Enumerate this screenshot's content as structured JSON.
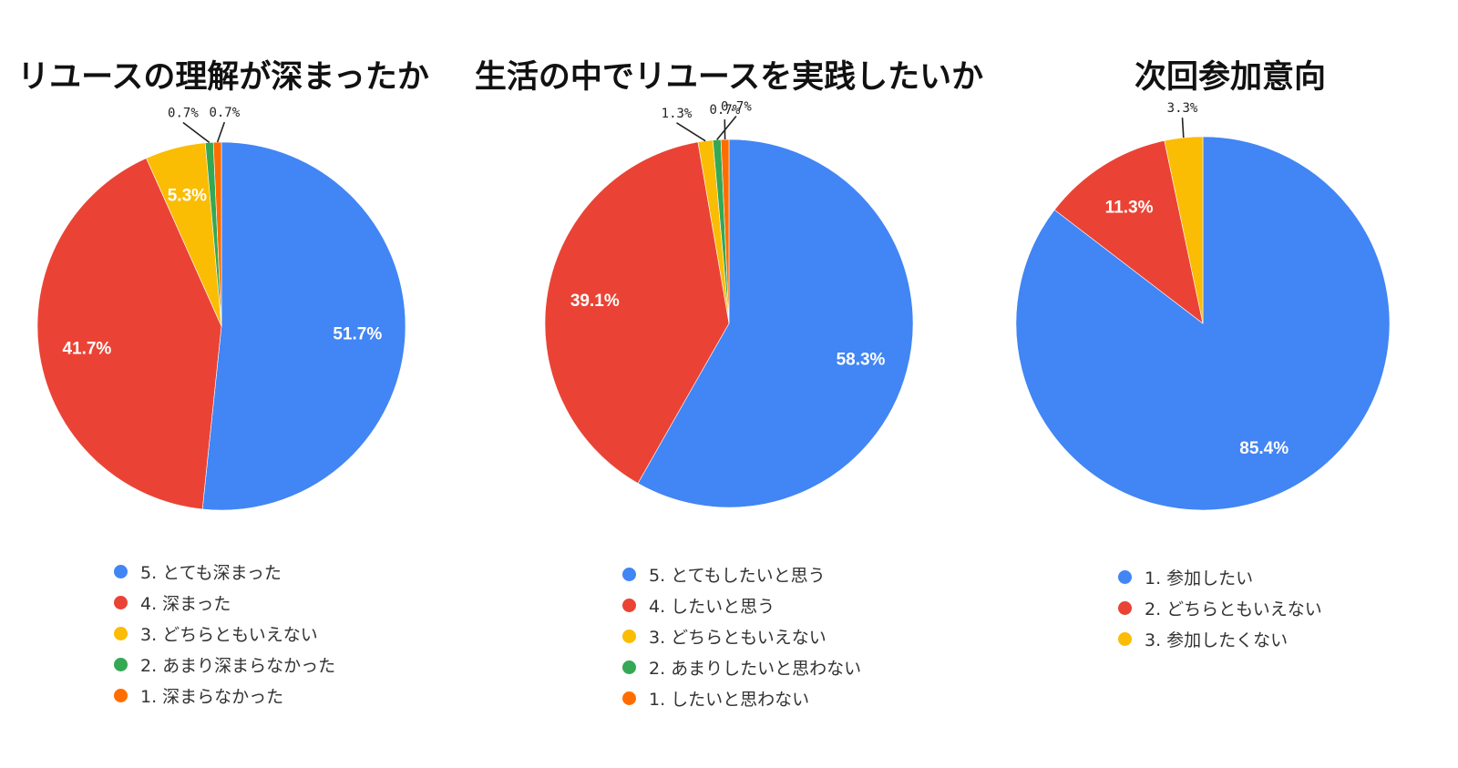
{
  "colors": {
    "blue": "#4285f4",
    "red": "#ea4335",
    "yellow": "#fbbc04",
    "green": "#34a853",
    "orange": "#ff6d01"
  },
  "chart_data": [
    {
      "type": "pie",
      "title": "リユースの理解が深まったか",
      "legend_position": "bottom",
      "slices": [
        {
          "label": "5. とても深まった",
          "value": 51.7,
          "value_label": "51.7%",
          "color": "#4285f4"
        },
        {
          "label": "4. 深まった",
          "value": 41.7,
          "value_label": "41.7%",
          "color": "#ea4335"
        },
        {
          "label": "3. どちらともいえない",
          "value": 5.3,
          "value_label": "5.3%",
          "color": "#fbbc04"
        },
        {
          "label": "2. あまり深まらなかった",
          "value": 0.7,
          "value_label": "0.7%",
          "color": "#34a853"
        },
        {
          "label": "1. 深まらなかった",
          "value": 0.7,
          "value_label": "0.7%",
          "color": "#ff6d01"
        }
      ]
    },
    {
      "type": "pie",
      "title": "生活の中でリユースを実践したいか",
      "legend_position": "bottom",
      "slices": [
        {
          "label": "5. とてもしたいと思う",
          "value": 58.3,
          "value_label": "58.3%",
          "color": "#4285f4"
        },
        {
          "label": "4. したいと思う",
          "value": 39.1,
          "value_label": "39.1%",
          "color": "#ea4335"
        },
        {
          "label": "3. どちらともいえない",
          "value": 1.3,
          "value_label": "1.3%",
          "color": "#fbbc04"
        },
        {
          "label": "2. あまりしたいと思わない",
          "value": 0.7,
          "value_label": "0.7%",
          "color": "#34a853"
        },
        {
          "label": "1. したいと思わない",
          "value": 0.7,
          "value_label": "0.7%",
          "color": "#ff6d01"
        }
      ]
    },
    {
      "type": "pie",
      "title": "次回参加意向",
      "legend_position": "bottom",
      "slices": [
        {
          "label": "1. 参加したい",
          "value": 85.4,
          "value_label": "85.4%",
          "color": "#4285f4"
        },
        {
          "label": "2. どちらともいえない",
          "value": 11.3,
          "value_label": "11.3%",
          "color": "#ea4335"
        },
        {
          "label": "3. 参加したくない",
          "value": 3.3,
          "value_label": "3.3%",
          "color": "#fbbc04"
        }
      ]
    }
  ]
}
